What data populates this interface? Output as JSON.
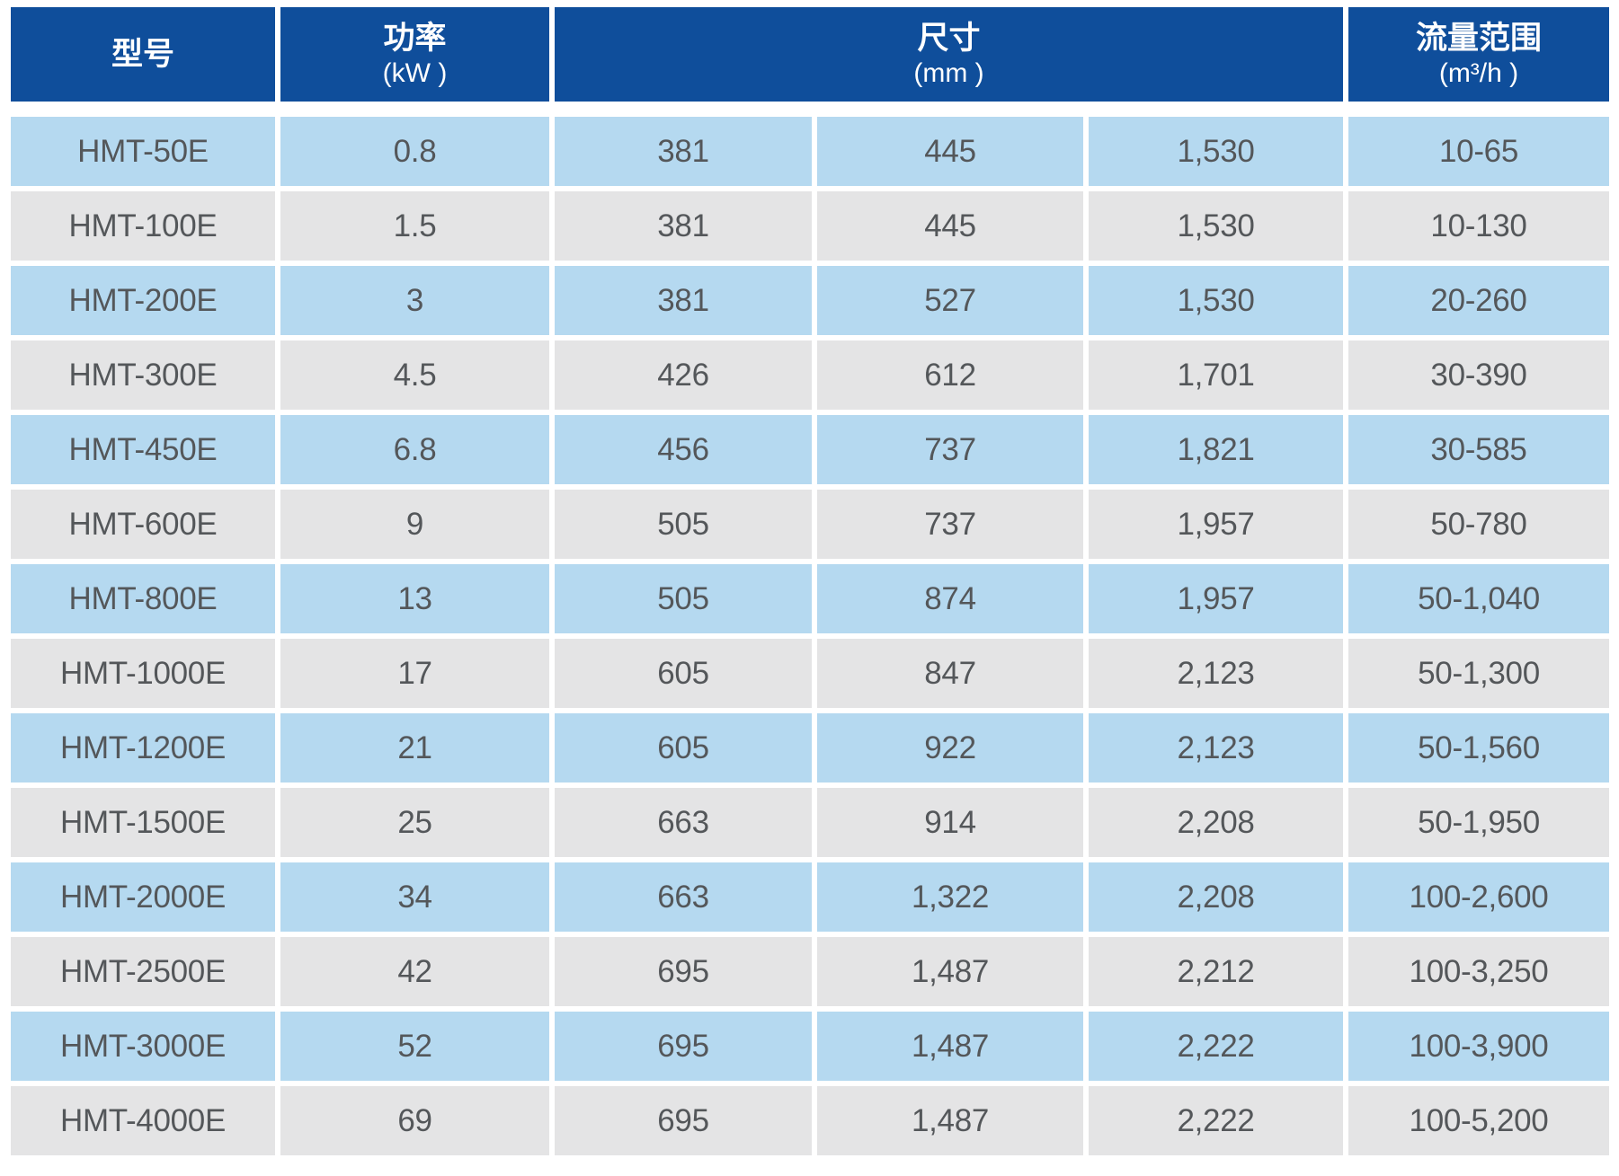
{
  "colors": {
    "header_bg": "#0F4E9B",
    "header_text": "#FFFFFF",
    "row_blue": "#B5D9F0",
    "row_gray": "#E4E4E5",
    "cell_text": "#54575A",
    "page_bg": "#FFFFFF"
  },
  "table": {
    "header": {
      "model_label": "型号",
      "power_label": "功率",
      "power_unit": "(kW )",
      "dims_label": "尺寸",
      "dims_unit": "(mm )",
      "flow_label": "流量范围",
      "flow_unit": "(m³/h )"
    },
    "rows": [
      {
        "model": "HMT-50E",
        "power": "0.8",
        "dim1": "381",
        "dim2": "445",
        "dim3": "1,530",
        "flow": "10-65"
      },
      {
        "model": "HMT-100E",
        "power": "1.5",
        "dim1": "381",
        "dim2": "445",
        "dim3": "1,530",
        "flow": "10-130"
      },
      {
        "model": "HMT-200E",
        "power": "3",
        "dim1": "381",
        "dim2": "527",
        "dim3": "1,530",
        "flow": "20-260"
      },
      {
        "model": "HMT-300E",
        "power": "4.5",
        "dim1": "426",
        "dim2": "612",
        "dim3": "1,701",
        "flow": "30-390"
      },
      {
        "model": "HMT-450E",
        "power": "6.8",
        "dim1": "456",
        "dim2": "737",
        "dim3": "1,821",
        "flow": "30-585"
      },
      {
        "model": "HMT-600E",
        "power": "9",
        "dim1": "505",
        "dim2": "737",
        "dim3": "1,957",
        "flow": "50-780"
      },
      {
        "model": "HMT-800E",
        "power": "13",
        "dim1": "505",
        "dim2": "874",
        "dim3": "1,957",
        "flow": "50-1,040"
      },
      {
        "model": "HMT-1000E",
        "power": "17",
        "dim1": "605",
        "dim2": "847",
        "dim3": "2,123",
        "flow": "50-1,300"
      },
      {
        "model": "HMT-1200E",
        "power": "21",
        "dim1": "605",
        "dim2": "922",
        "dim3": "2,123",
        "flow": "50-1,560"
      },
      {
        "model": "HMT-1500E",
        "power": "25",
        "dim1": "663",
        "dim2": "914",
        "dim3": "2,208",
        "flow": "50-1,950"
      },
      {
        "model": "HMT-2000E",
        "power": "34",
        "dim1": "663",
        "dim2": "1,322",
        "dim3": "2,208",
        "flow": "100-2,600"
      },
      {
        "model": "HMT-2500E",
        "power": "42",
        "dim1": "695",
        "dim2": "1,487",
        "dim3": "2,212",
        "flow": "100-3,250"
      },
      {
        "model": "HMT-3000E",
        "power": "52",
        "dim1": "695",
        "dim2": "1,487",
        "dim3": "2,222",
        "flow": "100-3,900"
      },
      {
        "model": "HMT-4000E",
        "power": "69",
        "dim1": "695",
        "dim2": "1,487",
        "dim3": "2,222",
        "flow": "100-5,200"
      }
    ]
  }
}
